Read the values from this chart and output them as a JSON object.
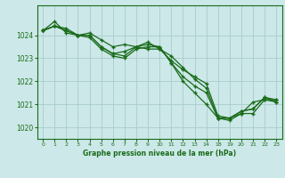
{
  "background_color": "#cce8e8",
  "grid_color": "#aacccc",
  "line_color": "#1a6b1a",
  "marker_color": "#1a6b1a",
  "title": "Graphe pression niveau de la mer (hPa)",
  "title_color": "#1a6b1a",
  "ylim": [
    1019.5,
    1025.3
  ],
  "yticks": [
    1020,
    1021,
    1022,
    1023,
    1024
  ],
  "x_positions": [
    0,
    1,
    2,
    3,
    4,
    5,
    6,
    7,
    8,
    9,
    10,
    11,
    12,
    13,
    14,
    15,
    16,
    17,
    18,
    19,
    20
  ],
  "xtick_labels": [
    "0",
    "1",
    "2",
    "3",
    "4",
    "5",
    "6",
    "7",
    "8",
    "9",
    "10",
    "11",
    "12",
    "13",
    "14",
    "18",
    "19",
    "20",
    "21",
    "22",
    "23"
  ],
  "series": [
    [
      1024.2,
      1024.4,
      1024.3,
      1024.0,
      1024.0,
      1023.5,
      1023.2,
      1023.1,
      1023.5,
      1023.6,
      1023.5,
      1022.8,
      1022.2,
      1021.8,
      1021.5,
      1020.4,
      1020.4,
      1020.6,
      1020.6,
      1021.2,
      1021.2
    ],
    [
      1024.2,
      1024.6,
      1024.1,
      1024.0,
      1023.9,
      1023.4,
      1023.1,
      1023.0,
      1023.4,
      1023.5,
      1023.5,
      1022.8,
      1022.0,
      1021.5,
      1021.0,
      1020.4,
      1020.3,
      1020.6,
      1021.1,
      1021.2,
      1021.1
    ],
    [
      1024.2,
      1024.4,
      1024.2,
      1024.0,
      1024.0,
      1023.5,
      1023.2,
      1023.3,
      1023.5,
      1023.7,
      1023.4,
      1023.1,
      1022.6,
      1022.1,
      1021.7,
      1020.4,
      1020.4,
      1020.7,
      1020.8,
      1021.3,
      1021.2
    ],
    [
      1024.2,
      1024.4,
      1024.2,
      1024.0,
      1024.1,
      1023.8,
      1023.5,
      1023.6,
      1023.5,
      1023.4,
      1023.4,
      1022.9,
      1022.5,
      1022.2,
      1021.9,
      1020.5,
      1020.4,
      1020.7,
      1020.8,
      1021.3,
      1021.1
    ]
  ]
}
